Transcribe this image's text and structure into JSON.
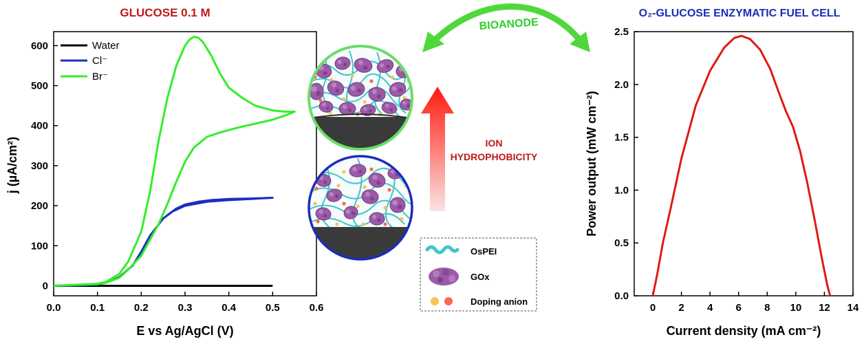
{
  "chart_data": [
    {
      "type": "line",
      "title": "GLUCOSE 0.1 M",
      "xlabel": "E vs Ag/AgCl (V)",
      "ylabel": "j (µA/cm²)",
      "xlim": [
        0.0,
        0.6
      ],
      "ylim": [
        -25,
        635
      ],
      "xticks": [
        0.0,
        0.1,
        0.2,
        0.3,
        0.4,
        0.5,
        0.6
      ],
      "yticks": [
        0,
        100,
        200,
        300,
        400,
        500,
        600
      ],
      "xtick_labels": [
        "0.0",
        "0.1",
        "0.2",
        "0.3",
        "0.4",
        "0.5",
        "0.6"
      ],
      "ytick_labels": [
        "0",
        "100",
        "200",
        "300",
        "400",
        "500",
        "600"
      ],
      "grid": false,
      "legend_position": "top-left",
      "series": [
        {
          "name": "Water",
          "color": "#000000",
          "x": [
            0.0,
            0.1,
            0.2,
            0.3,
            0.4,
            0.5
          ],
          "y": [
            0,
            0,
            0,
            0,
            0,
            0
          ]
        },
        {
          "name": "Cl⁻",
          "color": "#1a2fc0",
          "x": [
            0.0,
            0.1,
            0.12,
            0.15,
            0.18,
            0.2,
            0.22,
            0.25,
            0.28,
            0.3,
            0.33,
            0.36,
            0.4,
            0.45,
            0.5,
            0.45,
            0.4,
            0.35,
            0.3,
            0.27,
            0.25,
            0.22,
            0.2,
            0.18,
            0.15,
            0.12,
            0.1,
            0.05,
            0.0
          ],
          "y": [
            0,
            3,
            8,
            22,
            50,
            85,
            125,
            168,
            193,
            203,
            210,
            214,
            217,
            218,
            220,
            217,
            214,
            210,
            200,
            185,
            168,
            125,
            85,
            50,
            22,
            8,
            3,
            1,
            0
          ]
        },
        {
          "name": "Br⁻",
          "color": "#33ee2a",
          "x": [
            0.0,
            0.1,
            0.12,
            0.15,
            0.17,
            0.2,
            0.22,
            0.24,
            0.26,
            0.28,
            0.3,
            0.31,
            0.32,
            0.33,
            0.34,
            0.36,
            0.38,
            0.4,
            0.43,
            0.46,
            0.5,
            0.53,
            0.55,
            0.53,
            0.5,
            0.46,
            0.42,
            0.38,
            0.35,
            0.32,
            0.3,
            0.28,
            0.26,
            0.24,
            0.22,
            0.2,
            0.17,
            0.15,
            0.12,
            0.1,
            0.05,
            0.0
          ],
          "y": [
            0,
            5,
            10,
            30,
            60,
            135,
            235,
            365,
            470,
            550,
            600,
            615,
            622,
            620,
            610,
            575,
            530,
            495,
            470,
            450,
            438,
            435,
            435,
            426,
            415,
            405,
            395,
            383,
            372,
            345,
            310,
            260,
            205,
            155,
            115,
            75,
            40,
            20,
            8,
            4,
            2,
            0
          ]
        }
      ]
    },
    {
      "type": "line",
      "title": "O₂-GLUCOSE ENZYMATIC FUEL CELL",
      "xlabel": "Current density (mA cm⁻²)",
      "ylabel": "Power output (mW cm⁻²)",
      "xlim": [
        -1.3,
        14
      ],
      "ylim": [
        0,
        2.5
      ],
      "xticks": [
        0,
        2,
        4,
        6,
        8,
        10,
        12,
        14
      ],
      "yticks": [
        0.0,
        0.5,
        1.0,
        1.5,
        2.0,
        2.5
      ],
      "xtick_labels": [
        "0",
        "2",
        "4",
        "6",
        "8",
        "10",
        "12",
        "14"
      ],
      "ytick_labels": [
        "0.0",
        "0.5",
        "1.0",
        "1.5",
        "2.0",
        "2.5"
      ],
      "grid": false,
      "series": [
        {
          "color": "#e01a12",
          "x": [
            0,
            0.3,
            0.7,
            1.2,
            2,
            3,
            4,
            5,
            5.7,
            6.2,
            6.8,
            7.5,
            8.2,
            8.8,
            9.3,
            9.8,
            10.3,
            10.8,
            11.3,
            11.8,
            12.2,
            12.4
          ],
          "y": [
            0,
            0.2,
            0.5,
            0.8,
            1.3,
            1.8,
            2.13,
            2.35,
            2.44,
            2.46,
            2.43,
            2.33,
            2.15,
            1.93,
            1.75,
            1.6,
            1.37,
            1.07,
            0.73,
            0.37,
            0.1,
            0
          ]
        }
      ]
    }
  ],
  "diagram": {
    "arrow_label": "BIOANODE",
    "vertical_arrow_label_line1": "ION",
    "vertical_arrow_label_line2": "HYDROPHOBICITY",
    "legend": [
      {
        "label": "OsPEI"
      },
      {
        "label": "GOx"
      },
      {
        "label": "Doping anion"
      }
    ]
  }
}
